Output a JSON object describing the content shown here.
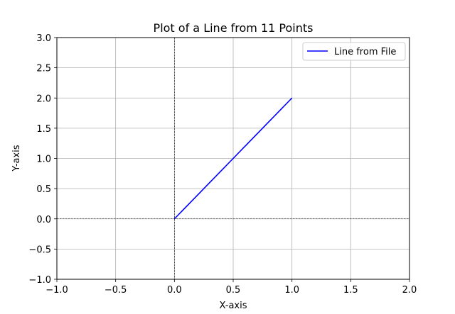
{
  "chart_data": {
    "type": "line",
    "title": "Plot of a Line from 11 Points",
    "xlabel": "X-axis",
    "ylabel": "Y-axis",
    "xlim": [
      -1.0,
      2.0
    ],
    "ylim": [
      -1.0,
      3.0
    ],
    "x_ticks": [
      -1.0,
      -0.5,
      0.0,
      0.5,
      1.0,
      1.5,
      2.0
    ],
    "y_ticks": [
      -1.0,
      -0.5,
      0.0,
      0.5,
      1.0,
      1.5,
      2.0,
      2.5,
      3.0
    ],
    "x_tick_labels": [
      "−1.0",
      "−0.5",
      "0.0",
      "0.5",
      "1.0",
      "1.5",
      "2.0"
    ],
    "y_tick_labels": [
      "−1.0",
      "−0.5",
      "0.0",
      "0.5",
      "1.0",
      "1.5",
      "2.0",
      "2.5",
      "3.0"
    ],
    "grid": true,
    "zero_lines": true,
    "legend_position": "top-right",
    "series": [
      {
        "name": "Line from File",
        "color": "#0000ff",
        "x": [
          0.0,
          0.1,
          0.2,
          0.3,
          0.4,
          0.5,
          0.6,
          0.7,
          0.8,
          0.9,
          1.0
        ],
        "y": [
          0.0,
          0.2,
          0.4,
          0.6,
          0.8,
          1.0,
          1.2,
          1.4,
          1.6,
          1.8,
          2.0
        ]
      }
    ]
  }
}
